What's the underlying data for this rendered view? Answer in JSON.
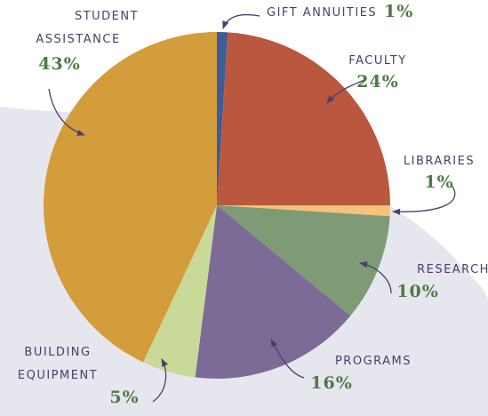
{
  "chart_data": {
    "type": "pie",
    "categories": [
      "GIFT ANNUITIES",
      "FACULTY",
      "LIBRARIES",
      "RESEARCH",
      "PROGRAMS",
      "BUILDING EQUIPMENT",
      "STUDENT ASSISTANCE"
    ],
    "values": [
      1,
      24,
      1,
      10,
      16,
      5,
      43
    ],
    "value_labels": [
      "1%",
      "24%",
      "1%",
      "10%",
      "16%",
      "5%",
      "43%"
    ],
    "colors": [
      "#3d5c99",
      "#b9573f",
      "#f6c27b",
      "#7e9b75",
      "#7c6b97",
      "#c9d997",
      "#d49d3b"
    ]
  }
}
